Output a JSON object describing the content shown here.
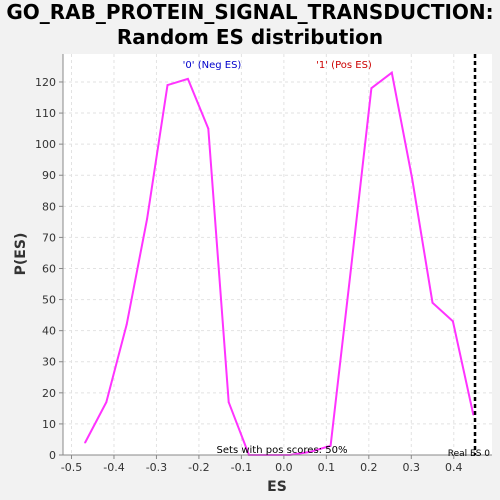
{
  "chart_data": {
    "type": "line",
    "title": [
      "GO_RAB_PROTEIN_SIGNAL_TRANSDUCTION:",
      "Random ES distribution"
    ],
    "xlabel": "ES",
    "ylabel": "P(ES)",
    "xlim": [
      -0.52,
      0.49
    ],
    "ylim": [
      0,
      129
    ],
    "x_ticks": [
      -0.5,
      -0.4,
      -0.3,
      -0.2,
      -0.1,
      0.0,
      0.1,
      0.2,
      0.3,
      0.4
    ],
    "x_tick_labels": [
      "-0.5",
      "-0.4",
      "-0.3",
      "-0.2",
      "-0.1",
      "0.0",
      "0.1",
      "0.2",
      "0.3",
      "0.4"
    ],
    "y_ticks": [
      0,
      10,
      20,
      30,
      40,
      50,
      60,
      70,
      80,
      90,
      100,
      110,
      120
    ],
    "y_tick_labels": [
      "0",
      "10",
      "20",
      "30",
      "40",
      "50",
      "60",
      "70",
      "80",
      "90",
      "100",
      "110",
      "120"
    ],
    "grid": true,
    "series": [
      {
        "color": "#ff33ff",
        "x": [
          -0.468,
          -0.418,
          -0.37,
          -0.322,
          -0.274,
          -0.226,
          -0.178,
          -0.13,
          -0.082,
          -0.034,
          0.014,
          0.062,
          0.11,
          0.158,
          0.206,
          0.254,
          0.302,
          0.35,
          0.398,
          0.446
        ],
        "y": [
          4,
          17,
          42,
          76,
          119,
          121,
          105,
          17,
          0,
          0,
          0,
          1,
          3,
          60,
          118,
          123,
          89,
          49,
          43,
          13
        ]
      }
    ],
    "annotations": {
      "neg_label": "'0' (Neg ES)",
      "pos_label": "'1' (Pos ES)",
      "sets_text": "Sets with pos scores: 50%",
      "real_es_label": "Real ES 0",
      "real_es_value": 0.45
    },
    "colors": {
      "line": "#ff33ff",
      "neg_label": "#0000cc",
      "pos_label": "#cc0000",
      "grid": "#e2e2e2",
      "background": "#ffffff",
      "page": "#f2f2f2"
    }
  }
}
